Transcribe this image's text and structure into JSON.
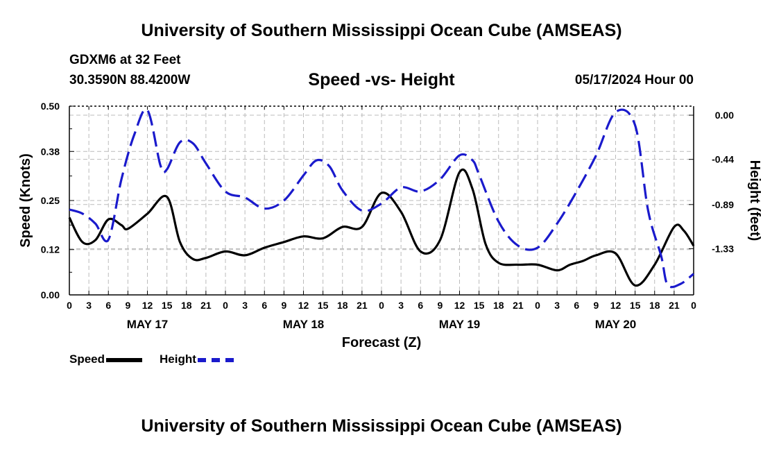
{
  "header": {
    "title": "University of Southern Mississippi Ocean Cube (AMSEAS)",
    "station": "GDXM6 at 32 Feet",
    "coords": "30.3590N  88.4200W",
    "subtitle": "Speed -vs- Height",
    "date": "05/17/2024 Hour 00"
  },
  "footer": {
    "title": "University of Southern Mississippi Ocean Cube (AMSEAS)"
  },
  "chart_data": {
    "type": "line",
    "title": "Speed -vs- Height",
    "xlabel": "Forecast (Z)",
    "ylabel_left": "Speed (Knots)",
    "ylabel_right": "Height (feet)",
    "x_hours_range": [
      0,
      96
    ],
    "ylim_left": [
      0,
      0.5
    ],
    "ylim_right": [
      -1.79,
      0.09
    ],
    "left_ticks": [
      "0.00",
      "0.12",
      "0.25",
      "0.38",
      "0.50"
    ],
    "right_ticks": [
      "0.00",
      "-0.44",
      "-0.89",
      "-1.33"
    ],
    "x_tick_labels": [
      "0",
      "3",
      "6",
      "9",
      "12",
      "15",
      "18",
      "21",
      "0",
      "3",
      "6",
      "9",
      "12",
      "15",
      "18",
      "21",
      "0",
      "3",
      "6",
      "9",
      "12",
      "15",
      "18",
      "21",
      "0",
      "3",
      "6",
      "9",
      "12",
      "15",
      "18",
      "21",
      "0"
    ],
    "day_labels": [
      "MAY 17",
      "MAY 18",
      "MAY 19",
      "MAY 20"
    ],
    "grid": true,
    "series": [
      {
        "name": "Speed",
        "axis": "left",
        "color": "#000000",
        "style": "solid",
        "x": [
          0,
          2,
          4,
          6,
          8,
          9,
          12,
          15,
          17,
          19,
          21,
          24,
          27,
          30,
          33,
          36,
          39,
          42,
          45,
          48,
          51,
          54,
          57,
          60,
          62,
          64,
          66,
          69,
          72,
          75,
          77,
          79,
          81,
          84,
          87,
          90,
          93,
          94.5,
          96
        ],
        "values": [
          0.205,
          0.14,
          0.145,
          0.2,
          0.185,
          0.175,
          0.215,
          0.26,
          0.14,
          0.095,
          0.098,
          0.115,
          0.105,
          0.125,
          0.14,
          0.155,
          0.15,
          0.18,
          0.18,
          0.27,
          0.22,
          0.115,
          0.145,
          0.325,
          0.28,
          0.135,
          0.085,
          0.08,
          0.08,
          0.065,
          0.08,
          0.09,
          0.105,
          0.11,
          0.025,
          0.08,
          0.18,
          0.17,
          0.13
        ]
      },
      {
        "name": "Height",
        "axis": "right",
        "color": "#1a1acc",
        "style": "dashed",
        "x": [
          0,
          2,
          4,
          6,
          8,
          10,
          12,
          14,
          15,
          17,
          19,
          21,
          24,
          27,
          30,
          33,
          36,
          38,
          40,
          42,
          45,
          48,
          51,
          54,
          57,
          60,
          62,
          63,
          66,
          69,
          72,
          75,
          78,
          81,
          84,
          87,
          89,
          91,
          92,
          94,
          96
        ],
        "values": [
          -0.94,
          -0.98,
          -1.08,
          -1.24,
          -0.64,
          -0.19,
          0.05,
          -0.5,
          -0.54,
          -0.27,
          -0.28,
          -0.48,
          -0.76,
          -0.82,
          -0.93,
          -0.85,
          -0.6,
          -0.45,
          -0.51,
          -0.75,
          -0.95,
          -0.88,
          -0.72,
          -0.76,
          -0.64,
          -0.4,
          -0.45,
          -0.59,
          -1.06,
          -1.3,
          -1.32,
          -1.08,
          -0.76,
          -0.4,
          0.03,
          -0.1,
          -0.95,
          -1.4,
          -1.69,
          -1.68,
          -1.58
        ]
      }
    ]
  },
  "legend": {
    "speed_label": "Speed",
    "height_label": "Height"
  }
}
